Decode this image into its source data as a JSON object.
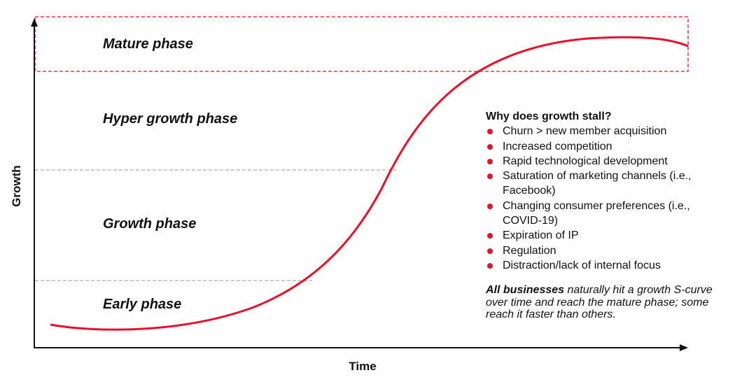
{
  "phases": {
    "mature": "Mature phase",
    "hyper": "Hyper growth phase",
    "growth": "Growth phase",
    "early": "Early phase"
  },
  "axes": {
    "x_label": "Time",
    "y_label": "Growth"
  },
  "stall_box": {
    "title": "Why does growth stall?",
    "items": [
      "Churn > new member acquisition",
      "Increased competition",
      "Rapid technological development",
      "Saturation of marketing channels (i.e., Facebook)",
      "Changing consumer preferences (i.e., COVID-19)",
      "Expiration of IP",
      "Regulation",
      "Distraction/lack of internal focus"
    ]
  },
  "note": {
    "bold": "All businesses",
    "rest": " naturally hit a growth S-curve over time and reach the mature phase; some reach it faster than others."
  },
  "colors": {
    "curve": "#e8102a",
    "mature_box": "#e8102a",
    "dividers": "#aaaaaa",
    "axes": "#111111"
  }
}
